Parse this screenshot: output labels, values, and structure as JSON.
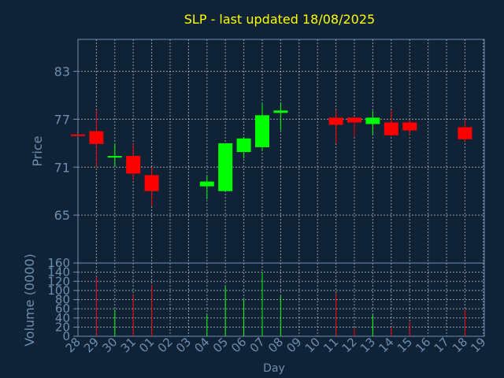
{
  "chart_data": {
    "type": "candlestick",
    "title": "SLP - last updated 18/08/2025",
    "xlabel": "Day",
    "price_axis": {
      "label": "Price",
      "ylim": [
        59,
        87
      ],
      "ticks": [
        65,
        71,
        77,
        83
      ]
    },
    "volume_axis": {
      "label": "Volume (0000)",
      "ylim": [
        0,
        160
      ],
      "ticks": [
        0,
        20,
        40,
        60,
        80,
        100,
        120,
        140,
        160
      ]
    },
    "grid": true,
    "x_ticks": [
      "28",
      "29",
      "30",
      "31",
      "01",
      "02",
      "03",
      "04",
      "05",
      "06",
      "07",
      "08",
      "09",
      "10",
      "11",
      "12",
      "13",
      "14",
      "15",
      "16",
      "17",
      "18",
      "19"
    ],
    "candles": [
      {
        "day": "28",
        "open": 75.1,
        "high": 75.1,
        "low": 74.9,
        "close": 74.9,
        "volume": 0
      },
      {
        "day": "29",
        "open": 75.5,
        "high": 78.1,
        "low": 71.0,
        "close": 73.9,
        "volume": 130
      },
      {
        "day": "30",
        "open": 72.2,
        "high": 73.9,
        "low": 71.1,
        "close": 72.4,
        "volume": 58
      },
      {
        "day": "31",
        "open": 72.4,
        "high": 73.9,
        "low": 69.4,
        "close": 70.2,
        "volume": 92
      },
      {
        "day": "01",
        "open": 70.0,
        "high": 71.0,
        "low": 66.1,
        "close": 68.0,
        "volume": 112
      },
      {
        "day": "04",
        "open": 68.6,
        "high": 69.9,
        "low": 67.0,
        "close": 69.2,
        "volume": 48
      },
      {
        "day": "05",
        "open": 68.0,
        "high": 74.0,
        "low": 68.0,
        "close": 74.0,
        "volume": 110
      },
      {
        "day": "06",
        "open": 72.9,
        "high": 74.8,
        "low": 72.1,
        "close": 74.6,
        "volume": 80
      },
      {
        "day": "07",
        "open": 73.5,
        "high": 79.0,
        "low": 73.1,
        "close": 77.5,
        "volume": 140
      },
      {
        "day": "08",
        "open": 77.8,
        "high": 79.0,
        "low": 75.6,
        "close": 78.1,
        "volume": 88
      },
      {
        "day": "11",
        "open": 77.2,
        "high": 78.1,
        "low": 74.0,
        "close": 76.3,
        "volume": 95
      },
      {
        "day": "12",
        "open": 77.2,
        "high": 77.3,
        "low": 74.8,
        "close": 76.6,
        "volume": 18
      },
      {
        "day": "13",
        "open": 76.4,
        "high": 78.1,
        "low": 75.0,
        "close": 77.2,
        "volume": 48
      },
      {
        "day": "14",
        "open": 76.6,
        "high": 78.1,
        "low": 74.9,
        "close": 75.0,
        "volume": 20
      },
      {
        "day": "15",
        "open": 76.6,
        "high": 77.0,
        "low": 75.0,
        "close": 75.6,
        "volume": 32
      },
      {
        "day": "18",
        "open": 76.0,
        "high": 77.0,
        "low": 74.2,
        "close": 74.5,
        "volume": 58
      }
    ],
    "colors": {
      "background": "#0f2236",
      "grid": "#ffffff",
      "up": "#00ff00",
      "down": "#ff0000",
      "title": "#ffff00",
      "axis_text": "#6f8fb0"
    }
  }
}
